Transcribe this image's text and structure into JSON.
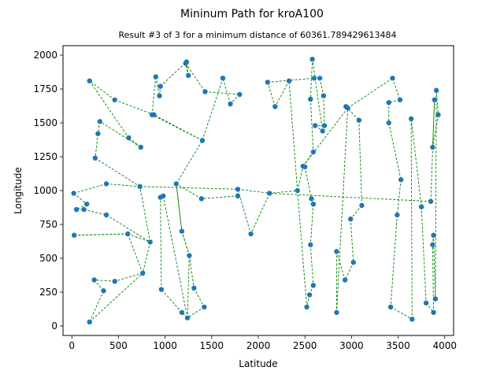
{
  "chart_data": {
    "type": "scatter",
    "title": "Mininum Path for kroA100",
    "subtitle": "Result #3 of 3 for a minimum distance of 60361.789429613484",
    "xlabel": "Latitude",
    "ylabel": "Longitude",
    "xlim": [
      -95,
      4095
    ],
    "ylim": [
      -70,
      2070
    ],
    "xticks": [
      0,
      500,
      1000,
      1500,
      2000,
      2500,
      3000,
      3500,
      4000
    ],
    "yticks": [
      0,
      250,
      500,
      750,
      1000,
      1250,
      1500,
      1750,
      2000
    ],
    "marker_color": "#1f77b4",
    "path_color": "#008000",
    "path_style": "dashed",
    "points": [
      [
        2120,
        980
      ],
      [
        1920,
        680
      ],
      [
        1780,
        1010
      ],
      [
        1780,
        960
      ],
      [
        1390,
        940
      ],
      [
        1120,
        1050
      ],
      [
        1180,
        700
      ],
      [
        1260,
        520
      ],
      [
        1310,
        280
      ],
      [
        1420,
        140
      ],
      [
        1240,
        60
      ],
      [
        1180,
        100
      ],
      [
        960,
        270
      ],
      [
        950,
        950
      ],
      [
        980,
        960
      ],
      [
        1250,
        1850
      ],
      [
        1220,
        1940
      ],
      [
        1430,
        1730
      ],
      [
        1800,
        1710
      ],
      [
        1700,
        1640
      ],
      [
        1620,
        1830
      ],
      [
        1400,
        1370
      ],
      [
        860,
        1560
      ],
      [
        900,
        1840
      ],
      [
        940,
        1700
      ],
      [
        950,
        1770
      ],
      [
        1230,
        1950
      ],
      [
        880,
        1560
      ],
      [
        460,
        1670
      ],
      [
        190,
        1810
      ],
      [
        610,
        1390
      ],
      [
        740,
        1320
      ],
      [
        300,
        1510
      ],
      [
        280,
        1420
      ],
      [
        250,
        1240
      ],
      [
        730,
        1030
      ],
      [
        370,
        1050
      ],
      [
        20,
        980
      ],
      [
        160,
        900
      ],
      [
        50,
        860
      ],
      [
        130,
        860
      ],
      [
        370,
        820
      ],
      [
        840,
        620
      ],
      [
        760,
        390
      ],
      [
        460,
        330
      ],
      [
        240,
        340
      ],
      [
        340,
        260
      ],
      [
        190,
        30
      ],
      [
        600,
        680
      ],
      [
        25,
        670
      ],
      [
        2580,
        1970
      ],
      [
        2560,
        1675
      ],
      [
        2590,
        1285
      ],
      [
        2480,
        1180
      ],
      [
        2500,
        1175
      ],
      [
        2570,
        940
      ],
      [
        2590,
        900
      ],
      [
        2560,
        600
      ],
      [
        2590,
        300
      ],
      [
        2550,
        230
      ],
      [
        2520,
        140
      ],
      [
        2420,
        1000
      ],
      [
        2330,
        1810
      ],
      [
        2180,
        1620
      ],
      [
        2100,
        1800
      ],
      [
        2600,
        1830
      ],
      [
        2660,
        1830
      ],
      [
        2700,
        1700
      ],
      [
        2710,
        1480
      ],
      [
        2610,
        1480
      ],
      [
        2690,
        1440
      ],
      [
        2960,
        1610
      ],
      [
        2940,
        1620
      ],
      [
        3080,
        1520
      ],
      [
        3110,
        890
      ],
      [
        2990,
        790
      ],
      [
        3020,
        470
      ],
      [
        2930,
        340
      ],
      [
        2840,
        550
      ],
      [
        2840,
        100
      ],
      [
        3400,
        1650
      ],
      [
        3400,
        1500
      ],
      [
        3440,
        1830
      ],
      [
        3520,
        1670
      ],
      [
        3530,
        1080
      ],
      [
        3490,
        820
      ],
      [
        3420,
        140
      ],
      [
        3650,
        50
      ],
      [
        3640,
        1530
      ],
      [
        3750,
        880
      ],
      [
        3800,
        170
      ],
      [
        3880,
        100
      ],
      [
        3870,
        600
      ],
      [
        3880,
        670
      ],
      [
        3900,
        200
      ],
      [
        3910,
        1740
      ],
      [
        3930,
        1560
      ],
      [
        3870,
        1320
      ],
      [
        3890,
        1670
      ],
      [
        3850,
        920
      ]
    ],
    "path_order": [
      0,
      1,
      2,
      3,
      4,
      5,
      6,
      7,
      8,
      9,
      10,
      11,
      12,
      13,
      14,
      10,
      7,
      6,
      5,
      21,
      22,
      23,
      24,
      25,
      26,
      15,
      16,
      17,
      18,
      19,
      20,
      21,
      27,
      28,
      29,
      30,
      31,
      32,
      33,
      34,
      35,
      36,
      37,
      38,
      39,
      40,
      41,
      42,
      43,
      44,
      45,
      46,
      47,
      43,
      48,
      49,
      48,
      42,
      35,
      2,
      0,
      61,
      53,
      54,
      55,
      56,
      57,
      58,
      59,
      60,
      61,
      62,
      63,
      64,
      65,
      66,
      67,
      68,
      69,
      70,
      50,
      51,
      52,
      53,
      71,
      72,
      73,
      74,
      75,
      76,
      77,
      78,
      79,
      71,
      82,
      83,
      80,
      81,
      84,
      85,
      86,
      87,
      88,
      89,
      90,
      91,
      92,
      93,
      94,
      95,
      96,
      97,
      98,
      99,
      0
    ]
  }
}
